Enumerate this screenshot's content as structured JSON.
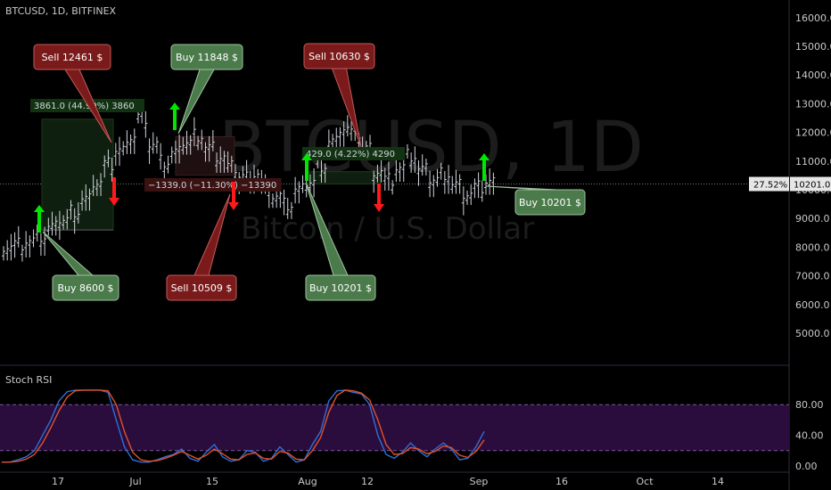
{
  "header": {
    "symbol_line": "BTCUSD, 1D, BITFINEX"
  },
  "watermark": {
    "big": "BTCUSD, 1D",
    "sub": "Bitcoin / U.S. Dollar"
  },
  "indicator": {
    "name": "Stoch RSI"
  },
  "price_axis": {
    "ticks": [
      "16000.0",
      "15000.0",
      "14000.0",
      "13000.0",
      "12000.0",
      "11000.0",
      "10000.0",
      "9000.0",
      "8000.0",
      "7000.0",
      "6000.0",
      "5000.0"
    ],
    "current_price": "10201.0",
    "current_pct": "27.52%"
  },
  "rsi_axis": {
    "ticks": [
      "80.00",
      "40.00",
      "0.00"
    ]
  },
  "time_axis": {
    "labels": [
      "17",
      "Jul",
      "15",
      "Aug",
      "12",
      "Sep",
      "16",
      "Oct",
      "14"
    ]
  },
  "callouts": [
    {
      "text": "Sell 12461 $",
      "kind": "sell"
    },
    {
      "text": "Buy 11848 $",
      "kind": "buy"
    },
    {
      "text": "Sell 10630 $",
      "kind": "sell"
    },
    {
      "text": "Buy 8600 $",
      "kind": "buy"
    },
    {
      "text": "Sell 10509 $",
      "kind": "sell"
    },
    {
      "text": "Buy 10201 $",
      "kind": "buy"
    },
    {
      "text": "Buy 10201 $",
      "kind": "buy"
    }
  ],
  "measures": [
    {
      "text": "3861.0 (44.90%) 3860",
      "kind": "up"
    },
    {
      "text": "−1339.0 (−11.30%) −13390",
      "kind": "down"
    },
    {
      "text": "429.0 (4.22%) 4290",
      "kind": "up"
    }
  ],
  "colors": {
    "buy_box": "#4b7a4b",
    "sell_box": "#7a1a1a",
    "buy_arrow": "#00e600",
    "sell_arrow": "#ff1a1a",
    "stoch_k": "#2f6fd6",
    "stoch_d": "#e0512a",
    "rsi_band": "#2a0d3d"
  },
  "chart_data": [
    {
      "type": "candlestick",
      "title": "BTCUSD, 1D, BITFINEX",
      "approx_close_series": [
        8000,
        8050,
        8150,
        8300,
        8600,
        8900,
        9200,
        9600,
        10200,
        10800,
        11300,
        11800,
        12461,
        11500,
        10900,
        11200,
        11600,
        11848,
        11400,
        11100,
        10700,
        10400,
        10509,
        10100,
        9700,
        9400,
        9900,
        10201,
        10800,
        11600,
        12100,
        11900,
        11400,
        10630,
        10300,
        10700,
        11100,
        10600,
        10300,
        10500,
        10100,
        9800,
        10000,
        10201
      ],
      "ylim": [
        5000,
        16000
      ],
      "signals": [
        {
          "type": "buy",
          "price": 8600
        },
        {
          "type": "sell",
          "price": 12461
        },
        {
          "type": "buy",
          "price": 11848
        },
        {
          "type": "sell",
          "price": 10509
        },
        {
          "type": "buy",
          "price": 10201
        },
        {
          "type": "sell",
          "price": 10630
        },
        {
          "type": "buy",
          "price": 10201
        }
      ]
    },
    {
      "type": "line",
      "title": "Stoch RSI",
      "ylim": [
        0,
        100
      ],
      "levels": [
        80,
        20
      ],
      "series": [
        {
          "name": "",
          "values": [
            5,
            5,
            8,
            12,
            20,
            40,
            60,
            85,
            97,
            99,
            99,
            99,
            99,
            96,
            60,
            25,
            8,
            5,
            5,
            8,
            12,
            15,
            22,
            10,
            6,
            18,
            28,
            12,
            6,
            8,
            20,
            18,
            6,
            10,
            25,
            15,
            5,
            8,
            28,
            45,
            85,
            98,
            99,
            96,
            94,
            80,
            40,
            15,
            10,
            18,
            30,
            20,
            12,
            22,
            30,
            22,
            8,
            10,
            25,
            45
          ]
        },
        {
          "name": "",
          "values": [
            5,
            5,
            6,
            9,
            15,
            30,
            50,
            72,
            90,
            98,
            99,
            99,
            99,
            98,
            80,
            45,
            18,
            8,
            6,
            7,
            10,
            14,
            19,
            14,
            9,
            14,
            22,
            16,
            9,
            8,
            15,
            17,
            10,
            9,
            19,
            17,
            9,
            8,
            20,
            37,
            70,
            92,
            99,
            98,
            95,
            86,
            60,
            28,
            15,
            16,
            24,
            22,
            16,
            19,
            26,
            24,
            14,
            11,
            19,
            34
          ]
        }
      ]
    }
  ]
}
